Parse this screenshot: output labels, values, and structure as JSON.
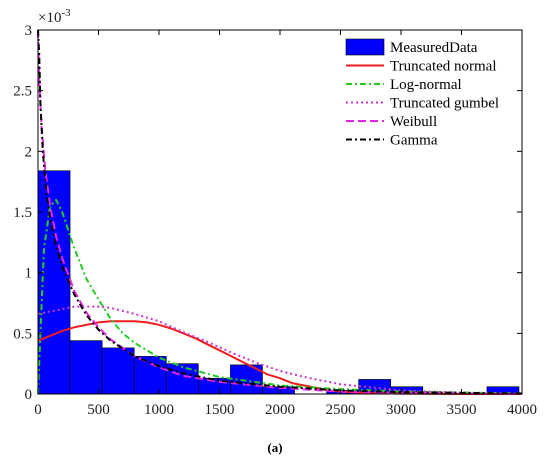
{
  "chart_data": {
    "type": "bar",
    "multiplier_label": "×10",
    "multiplier_exp": "-3",
    "xlim": [
      0,
      4000
    ],
    "ylim": [
      0,
      3
    ],
    "xticks": [
      0,
      500,
      1000,
      1500,
      2000,
      2500,
      3000,
      3500,
      4000
    ],
    "xtick_labels": [
      "0",
      "500",
      "1000",
      "1500",
      "2000",
      "2500",
      "3000",
      "3500",
      "4000"
    ],
    "yticks": [
      0,
      0.5,
      1,
      1.5,
      2,
      2.5,
      3
    ],
    "ytick_labels": [
      "0",
      "0.5",
      "1",
      "1.5",
      "2",
      "2.5",
      "3"
    ],
    "histogram": {
      "name": "MeasuredData",
      "color": "#0000ff",
      "bin_edges": [
        0,
        265,
        530,
        795,
        1060,
        1325,
        1590,
        1855,
        2120,
        2385,
        2650,
        2915,
        3180,
        3445,
        3710,
        3975
      ],
      "values": [
        1.84,
        0.44,
        0.38,
        0.31,
        0.25,
        0.13,
        0.24,
        0.06,
        0.0,
        0.03,
        0.12,
        0.06,
        0.0,
        0.0,
        0.06
      ]
    },
    "series": [
      {
        "name": "Truncated normal",
        "color": "#ee1c1c",
        "dash": "solid",
        "x": [
          0,
          100,
          200,
          300,
          400,
          500,
          600,
          700,
          800,
          900,
          1000,
          1100,
          1200,
          1300,
          1400,
          1500,
          1600,
          1700,
          1800,
          1900,
          2000,
          2100,
          2200,
          2300,
          2400,
          2500,
          2600,
          2700,
          2800,
          3000,
          3500,
          4000
        ],
        "y": [
          0.44,
          0.48,
          0.52,
          0.55,
          0.57,
          0.59,
          0.6,
          0.6,
          0.6,
          0.59,
          0.57,
          0.54,
          0.5,
          0.46,
          0.41,
          0.36,
          0.31,
          0.26,
          0.21,
          0.16,
          0.13,
          0.09,
          0.07,
          0.05,
          0.03,
          0.02,
          0.014,
          0.01,
          0.006,
          0.003,
          0.0,
          0.0
        ]
      },
      {
        "name": "Log-normal",
        "color": "#22cc22",
        "dash": "6,3,2,3",
        "x": [
          0,
          20,
          50,
          100,
          150,
          200,
          250,
          300,
          400,
          500,
          600,
          700,
          800,
          1000,
          1200,
          1500,
          2000,
          2500,
          3000,
          4000
        ],
        "y": [
          0.0,
          0.5,
          1.2,
          1.55,
          1.6,
          1.5,
          1.35,
          1.2,
          0.95,
          0.78,
          0.62,
          0.5,
          0.42,
          0.3,
          0.22,
          0.14,
          0.07,
          0.04,
          0.02,
          0.005
        ]
      },
      {
        "name": "Truncated gumbel",
        "color": "#cc33cc",
        "dash": "2,3",
        "x": [
          0,
          100,
          200,
          300,
          400,
          500,
          600,
          800,
          1000,
          1200,
          1400,
          1600,
          1800,
          2000,
          2200,
          2500,
          3000,
          3500,
          4000
        ],
        "y": [
          0.66,
          0.68,
          0.7,
          0.72,
          0.72,
          0.72,
          0.71,
          0.66,
          0.6,
          0.51,
          0.43,
          0.34,
          0.26,
          0.19,
          0.14,
          0.08,
          0.03,
          0.01,
          0.0
        ]
      },
      {
        "name": "Weibull",
        "color": "#ee22ee",
        "dash": "8,4",
        "x": [
          0,
          10,
          30,
          60,
          100,
          150,
          200,
          300,
          400,
          500,
          600,
          800,
          1000,
          1200,
          1500,
          2000,
          2500,
          3000,
          4000
        ],
        "y": [
          3.0,
          2.6,
          2.2,
          1.85,
          1.55,
          1.3,
          1.12,
          0.85,
          0.67,
          0.55,
          0.45,
          0.31,
          0.22,
          0.15,
          0.1,
          0.05,
          0.02,
          0.01,
          0.0
        ]
      },
      {
        "name": "Gamma",
        "color": "#000000",
        "dash": "6,3,2,3",
        "x": [
          0,
          10,
          20,
          40,
          70,
          100,
          150,
          200,
          300,
          400,
          500,
          600,
          800,
          1000,
          1200,
          1500,
          2000,
          2500,
          3000,
          4000
        ],
        "y": [
          3.0,
          2.8,
          2.4,
          2.0,
          1.65,
          1.45,
          1.22,
          1.05,
          0.82,
          0.65,
          0.53,
          0.44,
          0.31,
          0.23,
          0.17,
          0.11,
          0.06,
          0.03,
          0.015,
          0.004
        ]
      }
    ],
    "legend_position": "top-right"
  },
  "caption": "(a)"
}
